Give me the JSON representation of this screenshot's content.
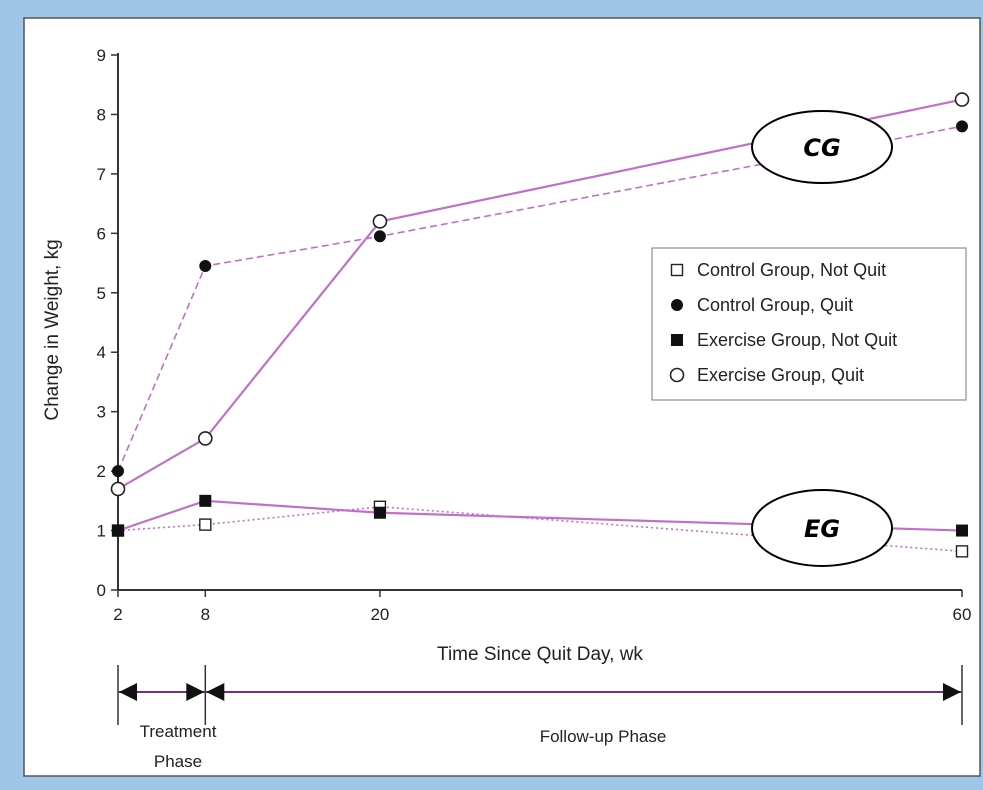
{
  "chart_data": {
    "type": "line",
    "title": "",
    "xlabel": "Time Since Quit Day, wk",
    "ylabel": "Change in Weight, kg",
    "x": [
      2,
      8,
      20,
      60
    ],
    "xticks": [
      2,
      8,
      20,
      60
    ],
    "yticks": [
      0,
      1,
      2,
      3,
      4,
      5,
      6,
      7,
      8,
      9
    ],
    "ylim": [
      0,
      9
    ],
    "legend_position": "right",
    "series": [
      {
        "name": "Control Group, Not Quit",
        "values": [
          1.0,
          1.1,
          1.4,
          0.65
        ],
        "marker": "open-square",
        "line": "dotted",
        "color": "#c070c8"
      },
      {
        "name": "Control Group, Quit",
        "values": [
          2.0,
          5.45,
          5.95,
          7.8
        ],
        "marker": "filled-circle",
        "line": "dashed",
        "color": "#c070c8"
      },
      {
        "name": "Exercise Group, Not Quit",
        "values": [
          1.0,
          1.5,
          1.3,
          1.0
        ],
        "marker": "filled-square",
        "line": "solid",
        "color": "#c070c8"
      },
      {
        "name": "Exercise Group, Quit",
        "values": [
          1.7,
          2.55,
          6.2,
          8.25
        ],
        "marker": "open-circle",
        "line": "solid",
        "color": "#c070c8"
      }
    ],
    "annotations": [
      {
        "text": "CG",
        "near_series": "Exercise Group, Quit"
      },
      {
        "text": "EG",
        "near_series": "Exercise Group, Not Quit"
      }
    ],
    "phases": [
      {
        "label_line1": "Treatment",
        "label_line2": "Phase",
        "from": 2,
        "to": 8
      },
      {
        "label_line1": "Follow-up Phase",
        "label_line2": "",
        "from": 8,
        "to": 60
      }
    ]
  }
}
